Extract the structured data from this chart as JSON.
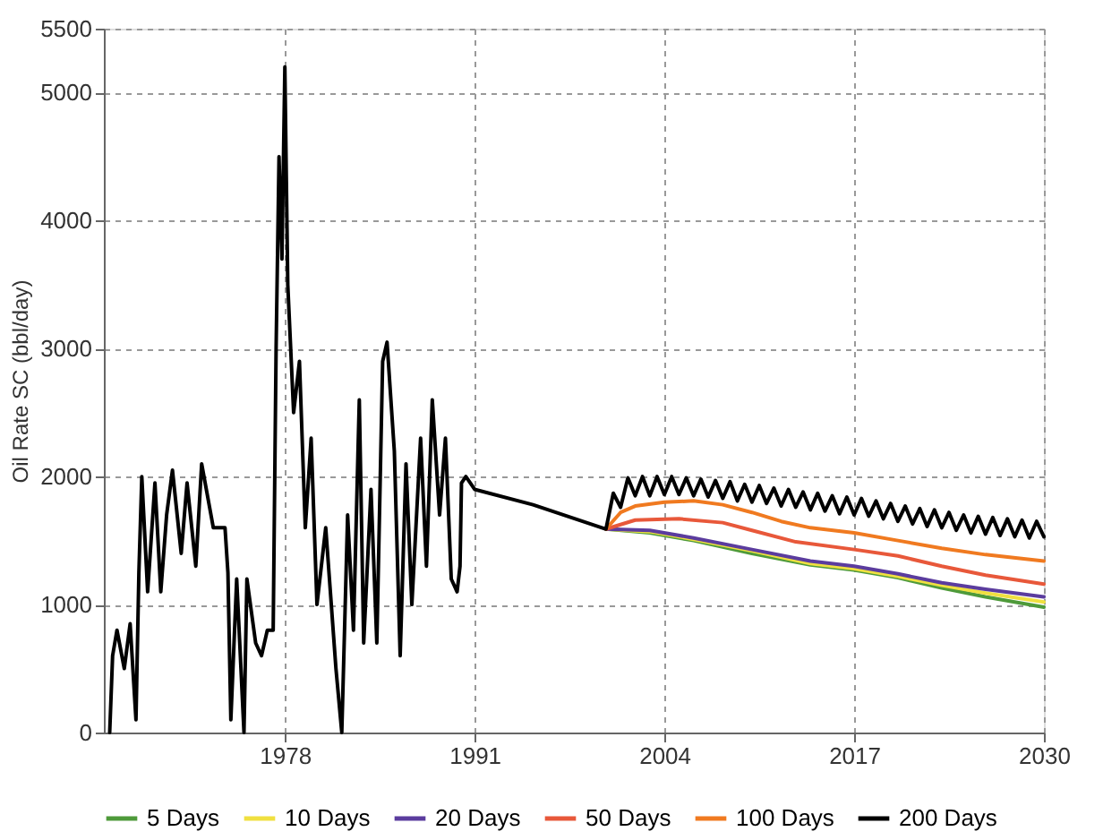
{
  "chart_data": {
    "type": "line",
    "ylabel": "Oil Rate SC (bbl/day)",
    "xlim": [
      1965.6,
      2030
    ],
    "xticks": [
      1978,
      1991,
      2004,
      2017,
      2030
    ],
    "ylim": [
      0,
      5500
    ],
    "yticks": [
      0,
      1000,
      2000,
      3000,
      4000,
      5000,
      5500
    ],
    "grid": true,
    "legend": "bottom",
    "marker": "none",
    "line_style": "solid",
    "series": [
      {
        "name": "5 Days",
        "color": "#4e9a3a",
        "x": [
          2000,
          2003,
          2006,
          2010,
          2014,
          2017,
          2020,
          2023,
          2026,
          2030
        ],
        "values": [
          1590,
          1560,
          1500,
          1400,
          1310,
          1270,
          1210,
          1130,
          1060,
          980
        ]
      },
      {
        "name": "10 Days",
        "color": "#f0e040",
        "x": [
          2000,
          2003,
          2006,
          2010,
          2014,
          2017,
          2020,
          2023,
          2026,
          2030
        ],
        "values": [
          1590,
          1570,
          1510,
          1420,
          1320,
          1280,
          1220,
          1150,
          1090,
          1020
        ]
      },
      {
        "name": "20 Days",
        "color": "#5b3c9e",
        "x": [
          2000,
          2003,
          2006,
          2010,
          2014,
          2017,
          2020,
          2023,
          2026,
          2030
        ],
        "values": [
          1590,
          1580,
          1520,
          1430,
          1340,
          1300,
          1240,
          1170,
          1120,
          1060
        ]
      },
      {
        "name": "50 Days",
        "color": "#e8583a",
        "x": [
          2000,
          2002,
          2005,
          2008,
          2010,
          2013,
          2017,
          2020,
          2023,
          2026,
          2030
        ],
        "values": [
          1590,
          1660,
          1670,
          1640,
          1580,
          1490,
          1430,
          1380,
          1300,
          1230,
          1160
        ]
      },
      {
        "name": "100 Days",
        "color": "#f07a20",
        "x": [
          2000,
          2001,
          2002,
          2004,
          2006,
          2008,
          2010,
          2012,
          2014,
          2017,
          2020,
          2023,
          2026,
          2030
        ],
        "values": [
          1590,
          1720,
          1770,
          1800,
          1810,
          1780,
          1720,
          1650,
          1600,
          1560,
          1500,
          1440,
          1390,
          1340
        ]
      },
      {
        "name": "200 Days",
        "color": "#000000",
        "x": [
          1966.0,
          1966.2,
          1966.5,
          1967.0,
          1967.4,
          1967.8,
          1968.0,
          1968.2,
          1968.6,
          1969.1,
          1969.5,
          1969.9,
          1970.3,
          1970.9,
          1971.3,
          1971.9,
          1972.3,
          1973.1,
          1973.9,
          1974.1,
          1974.3,
          1974.7,
          1975.2,
          1975.4,
          1976.0,
          1976.4,
          1976.8,
          1977.2,
          1977.4,
          1977.6,
          1977.8,
          1978.0,
          1978.2,
          1978.6,
          1979.0,
          1979.4,
          1979.8,
          1980.2,
          1980.8,
          1981.5,
          1981.9,
          1982.3,
          1982.7,
          1983.1,
          1983.4,
          1983.9,
          1984.3,
          1984.7,
          1985.0,
          1985.5,
          1985.9,
          1986.3,
          1986.7,
          1987.3,
          1987.7,
          1988.1,
          1988.6,
          1989.0,
          1989.4,
          1989.8,
          1990.0,
          1990.1,
          1990.4,
          1991.0,
          1995.0,
          2000.0,
          2000.5,
          2001.0,
          2001.5,
          2002.0,
          2002.5,
          2003.0,
          2003.5,
          2004.0,
          2004.5,
          2005.0,
          2005.5,
          2006.0,
          2006.5,
          2007.0,
          2007.5,
          2008.0,
          2008.5,
          2009.0,
          2009.5,
          2010.0,
          2010.5,
          2011.0,
          2011.5,
          2012.0,
          2012.5,
          2013.0,
          2013.5,
          2014.0,
          2014.5,
          2015.0,
          2015.5,
          2016.0,
          2016.5,
          2017.0,
          2017.5,
          2018.0,
          2018.5,
          2019.0,
          2019.5,
          2020.0,
          2020.5,
          2021.0,
          2021.5,
          2022.0,
          2022.5,
          2023.0,
          2023.5,
          2024.0,
          2024.5,
          2025.0,
          2025.5,
          2026.0,
          2026.5,
          2027.0,
          2027.5,
          2028.0,
          2028.5,
          2029.0,
          2029.5,
          2030.0
        ],
        "values": [
          0,
          600,
          800,
          500,
          850,
          100,
          1250,
          2000,
          1100,
          1950,
          1100,
          1700,
          2050,
          1400,
          1950,
          1300,
          2100,
          1600,
          1600,
          1250,
          100,
          1200,
          0,
          1200,
          700,
          600,
          800,
          800,
          3000,
          4500,
          3700,
          5200,
          3500,
          2500,
          2900,
          1600,
          2300,
          1000,
          1600,
          500,
          0,
          1700,
          800,
          2600,
          700,
          1900,
          700,
          2900,
          3050,
          2200,
          600,
          2100,
          1000,
          2300,
          1300,
          2600,
          1700,
          2300,
          1200,
          1100,
          1300,
          1950,
          2000,
          1900,
          1780,
          1590,
          1870,
          1760,
          1990,
          1850,
          2000,
          1850,
          2000,
          1860,
          2000,
          1860,
          1990,
          1850,
          1980,
          1840,
          1970,
          1830,
          1960,
          1810,
          1940,
          1800,
          1930,
          1790,
          1910,
          1770,
          1900,
          1760,
          1880,
          1740,
          1870,
          1730,
          1850,
          1710,
          1840,
          1700,
          1830,
          1690,
          1810,
          1670,
          1790,
          1650,
          1770,
          1630,
          1750,
          1610,
          1740,
          1600,
          1720,
          1580,
          1700,
          1560,
          1690,
          1550,
          1680,
          1540,
          1670,
          1530,
          1660,
          1520,
          1650,
          1530
        ]
      }
    ]
  }
}
